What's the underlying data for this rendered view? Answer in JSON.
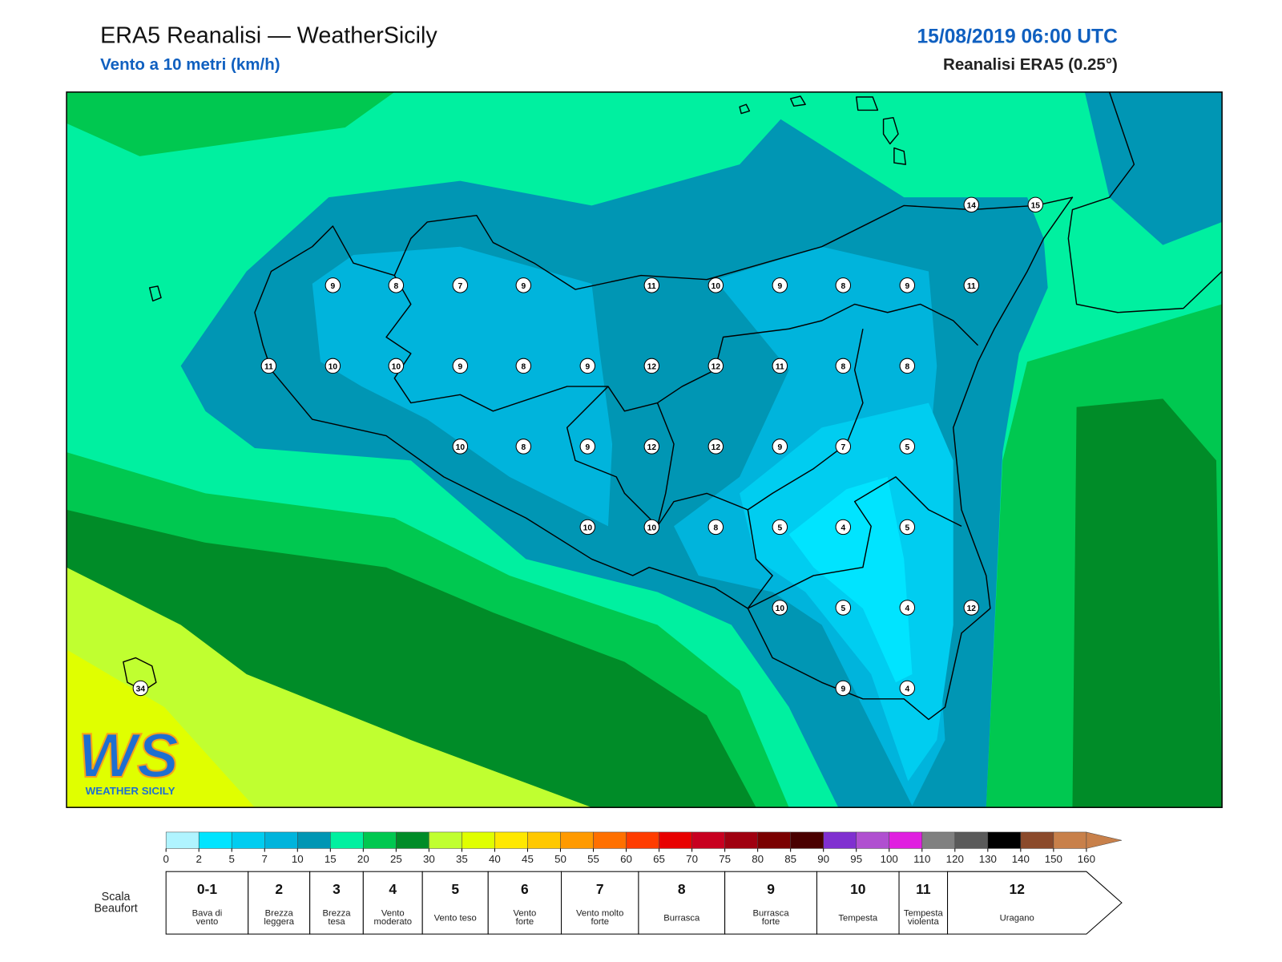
{
  "header": {
    "title": "ERA5 Reanalisi — WeatherSicily",
    "subtitle": "Vento a 10 metri (km/h)",
    "date": "15/08/2019 06:00 UTC",
    "source": "Reanalisi ERA5 (0.25°)"
  },
  "stations": [
    9,
    8,
    7,
    9,
    11,
    10,
    9,
    8,
    9,
    11,
    11,
    10,
    10,
    9,
    8,
    9,
    12,
    12,
    11,
    8,
    8,
    10,
    8,
    9,
    12,
    12,
    9,
    7,
    5,
    10,
    10,
    8,
    5,
    4,
    5,
    10,
    5,
    4,
    12,
    9,
    4,
    14,
    15,
    34
  ],
  "logo": {
    "mark": "WS",
    "name": "WEATHER SICILY"
  },
  "colorbar": {
    "ticks": [
      0,
      2,
      5,
      7,
      10,
      15,
      20,
      25,
      30,
      35,
      40,
      45,
      50,
      55,
      60,
      65,
      70,
      75,
      80,
      85,
      90,
      95,
      100,
      110,
      120,
      130,
      140,
      150,
      160
    ],
    "colors": [
      "#b0f4ff",
      "#00e4ff",
      "#00cdf0",
      "#00b4dc",
      "#0096b4",
      "#00f0a0",
      "#00c850",
      "#008c28",
      "#c0ff30",
      "#e0ff00",
      "#ffe800",
      "#ffc800",
      "#ff9a00",
      "#ff7000",
      "#ff3c00",
      "#e80000",
      "#c80020",
      "#a00010",
      "#7a0000",
      "#4a0000",
      "#8030d0",
      "#b050d0",
      "#e020e0",
      "#808080",
      "#5a5a5a",
      "#000000",
      "#8b4a2b",
      "#c8804a"
    ]
  },
  "beaufort": {
    "label": [
      "Scala",
      "Beaufort"
    ],
    "levels": [
      {
        "force": "0-1",
        "desc": [
          "Bava di",
          "vento"
        ]
      },
      {
        "force": "2",
        "desc": [
          "Brezza",
          "leggera"
        ]
      },
      {
        "force": "3",
        "desc": [
          "Brezza",
          "tesa"
        ]
      },
      {
        "force": "4",
        "desc": [
          "Vento",
          "moderato"
        ]
      },
      {
        "force": "5",
        "desc": [
          "Vento teso"
        ]
      },
      {
        "force": "6",
        "desc": [
          "Vento",
          "forte"
        ]
      },
      {
        "force": "7",
        "desc": [
          "Vento molto",
          "forte"
        ]
      },
      {
        "force": "8",
        "desc": [
          "Burrasca"
        ]
      },
      {
        "force": "9",
        "desc": [
          "Burrasca",
          "forte"
        ]
      },
      {
        "force": "10",
        "desc": [
          "Tempesta"
        ]
      },
      {
        "force": "11",
        "desc": [
          "Tempesta",
          "violenta"
        ]
      },
      {
        "force": "12",
        "desc": [
          "Uragano"
        ]
      }
    ]
  }
}
